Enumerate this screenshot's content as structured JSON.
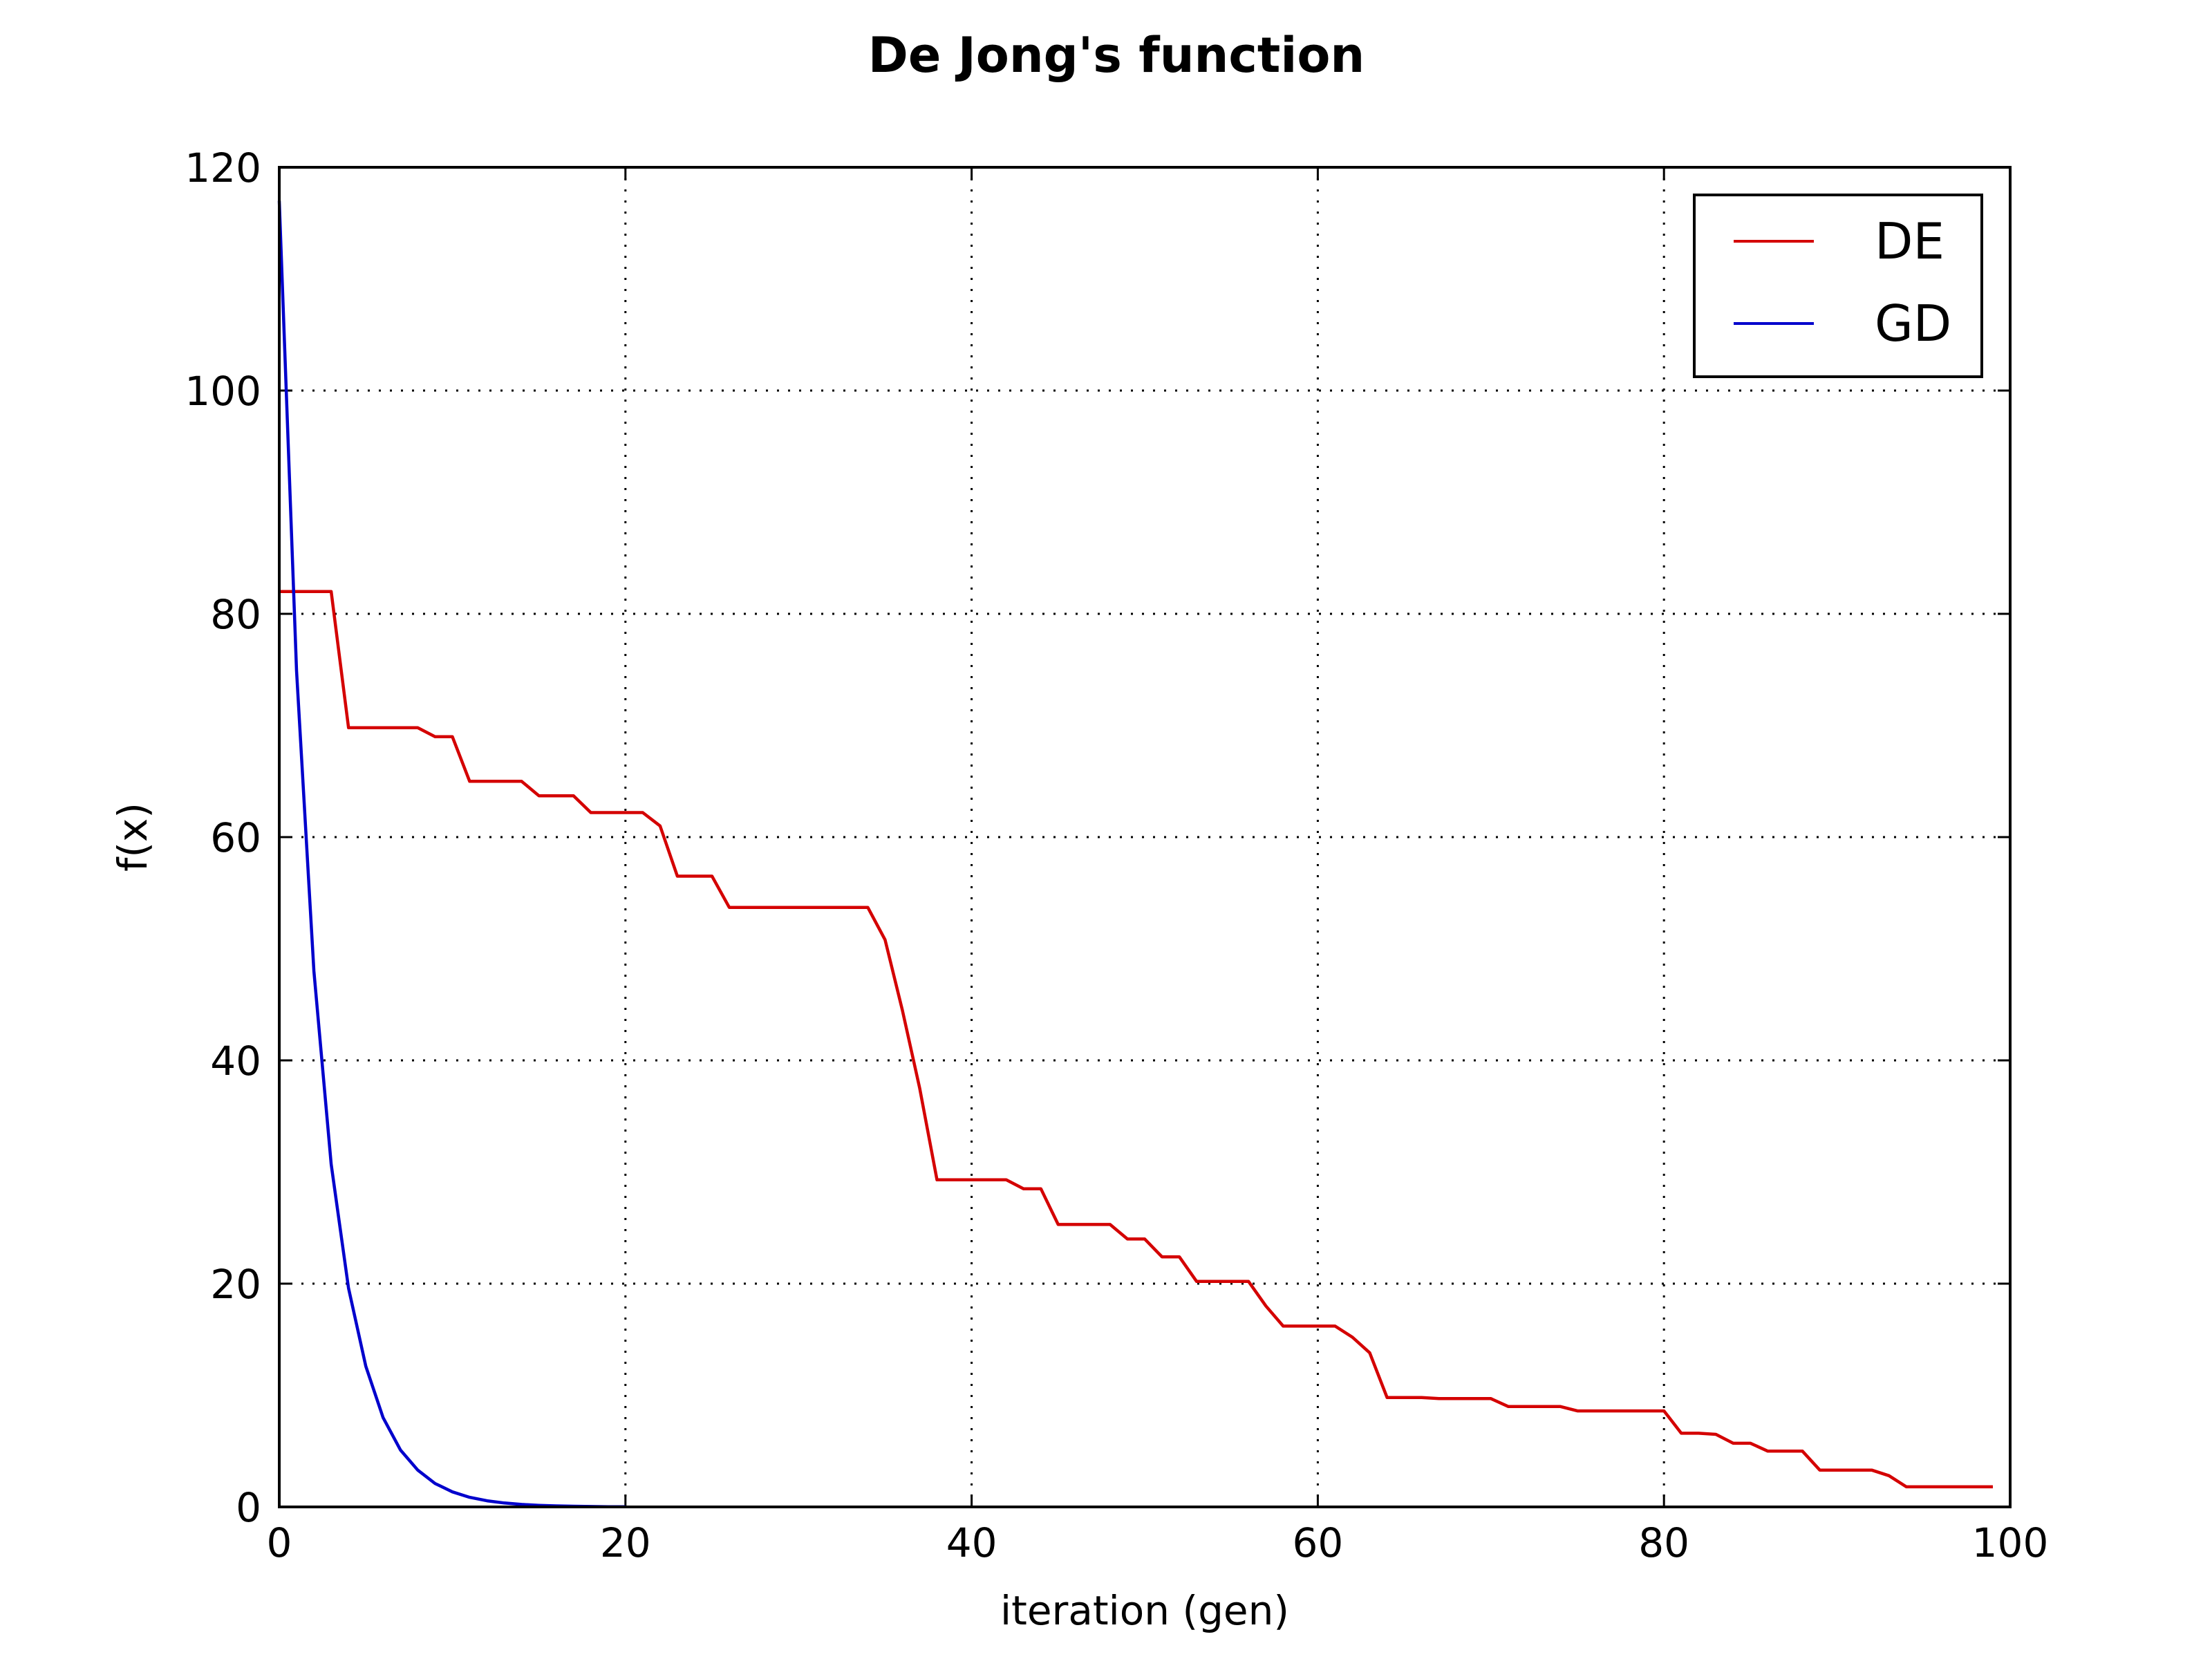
{
  "chart_data": {
    "type": "line",
    "title": "De Jong's function",
    "xlabel": "iteration (gen)",
    "ylabel": "f(x)",
    "xlim": [
      0,
      100
    ],
    "ylim": [
      0,
      120
    ],
    "xticks": [
      0,
      20,
      40,
      60,
      80,
      100
    ],
    "yticks": [
      0,
      20,
      40,
      60,
      80,
      100,
      120
    ],
    "grid": true,
    "legend_position": "top-right",
    "series": [
      {
        "name": "DE",
        "color": "#d40000",
        "x": [
          0,
          1,
          2,
          3,
          4,
          5,
          6,
          7,
          8,
          9,
          10,
          11,
          12,
          13,
          14,
          15,
          16,
          17,
          18,
          19,
          20,
          21,
          22,
          23,
          24,
          25,
          26,
          27,
          28,
          29,
          30,
          31,
          32,
          33,
          34,
          35,
          36,
          37,
          38,
          39,
          40,
          41,
          42,
          43,
          44,
          45,
          46,
          47,
          48,
          49,
          50,
          51,
          52,
          53,
          54,
          55,
          56,
          57,
          58,
          59,
          60,
          61,
          62,
          63,
          64,
          65,
          66,
          67,
          68,
          69,
          70,
          71,
          72,
          73,
          74,
          75,
          76,
          77,
          78,
          79,
          80,
          81,
          82,
          83,
          84,
          85,
          86,
          87,
          88,
          89,
          90,
          91,
          92,
          93,
          94,
          95,
          96,
          97,
          98,
          99
        ],
        "y": [
          82,
          82,
          82,
          82,
          69.8,
          69.8,
          69.8,
          69.8,
          69.8,
          69,
          69,
          65,
          65,
          65,
          65,
          63.7,
          63.7,
          63.7,
          62.2,
          62.2,
          62.2,
          62.2,
          61,
          56.5,
          56.5,
          56.5,
          53.7,
          53.7,
          53.7,
          53.7,
          53.7,
          53.7,
          53.7,
          53.7,
          53.7,
          50.8,
          44.5,
          37.5,
          29.3,
          29.3,
          29.3,
          29.3,
          29.3,
          28.5,
          28.5,
          25.3,
          25.3,
          25.3,
          25.3,
          24,
          24,
          22.4,
          22.4,
          20.2,
          20.2,
          20.2,
          20.2,
          18,
          16.2,
          16.2,
          16.2,
          16.2,
          15.2,
          13.8,
          9.8,
          9.8,
          9.8,
          9.7,
          9.7,
          9.7,
          9.7,
          9,
          9,
          9,
          9,
          8.6,
          8.6,
          8.6,
          8.6,
          8.6,
          8.6,
          6.6,
          6.6,
          6.5,
          5.7,
          5.7,
          5,
          5,
          5,
          3.3,
          3.3,
          3.3,
          3.3,
          2.8,
          1.8,
          1.8,
          1.8,
          1.8,
          1.8,
          1.8
        ]
      },
      {
        "name": "GD",
        "color": "#0000cc",
        "x": [
          0,
          1,
          2,
          3,
          4,
          5,
          6,
          7,
          8,
          9,
          10,
          11,
          12,
          13,
          14,
          15,
          16,
          17,
          18,
          19,
          20
        ],
        "y": [
          117,
          74.9,
          48,
          30.7,
          19.6,
          12.6,
          8,
          5.1,
          3.3,
          2.1,
          1.35,
          0.86,
          0.55,
          0.35,
          0.22,
          0.14,
          0.09,
          0.06,
          0.04,
          0.02,
          0.01
        ]
      }
    ]
  }
}
